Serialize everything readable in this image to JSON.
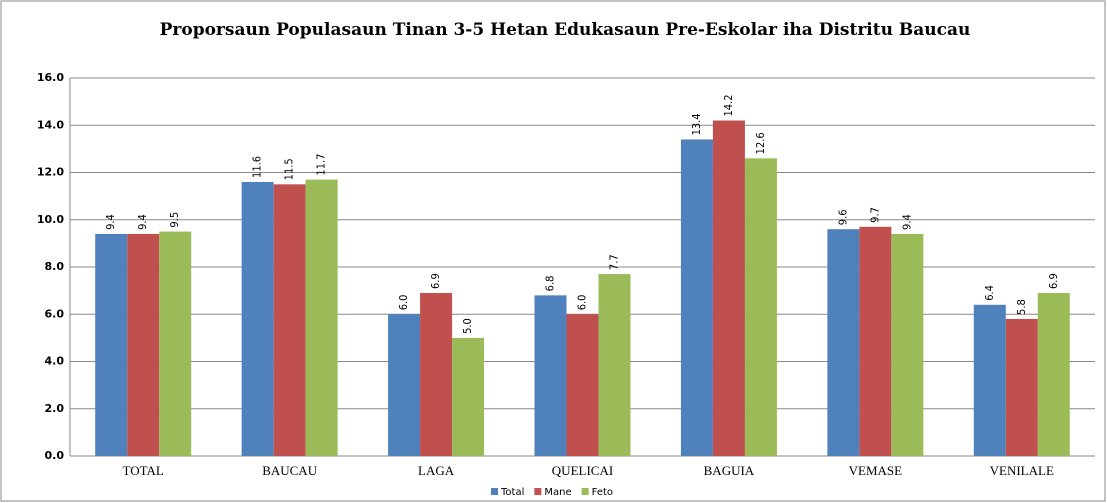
{
  "chart_data": {
    "type": "bar",
    "title": "Proporsaun Populasaun Tinan 3-5 Hetan Edukasaun Pre-Eskolar iha Distritu Baucau",
    "categories": [
      "TOTAL",
      "BAUCAU",
      "LAGA",
      "QUELICAI",
      "BAGUIA",
      "VEMASE",
      "VENILALE"
    ],
    "series": [
      {
        "name": "Total",
        "color": "#4f81bd",
        "values": [
          9.4,
          11.6,
          6.0,
          6.8,
          13.4,
          9.6,
          6.4
        ],
        "value_labels": [
          "9.4",
          "11.6",
          "6.0",
          "6.8",
          "13.4",
          "9.6",
          "6.4"
        ]
      },
      {
        "name": "Mane",
        "color": "#c0504d",
        "values": [
          9.4,
          11.5,
          6.9,
          6.0,
          14.2,
          9.7,
          5.8
        ],
        "value_labels": [
          "9.4",
          "11.5",
          "6.9",
          "6.0",
          "14.2",
          "9.7",
          "5.8"
        ]
      },
      {
        "name": "Feto",
        "color": "#9bbb59",
        "values": [
          9.5,
          11.7,
          5.0,
          7.7,
          12.6,
          9.4,
          6.9
        ],
        "value_labels": [
          "9.5",
          "11.7",
          "5.0",
          "7.7",
          "12.6",
          "9.4",
          "6.9"
        ]
      }
    ],
    "ylim": [
      0,
      16
    ],
    "yticks": [
      {
        "value": 0,
        "label": "0.0"
      },
      {
        "value": 2,
        "label": "2.0"
      },
      {
        "value": 4,
        "label": "4.0"
      },
      {
        "value": 6,
        "label": "6.0"
      },
      {
        "value": 8,
        "label": "8.0"
      },
      {
        "value": 10,
        "label": "10.0"
      },
      {
        "value": 12,
        "label": "12.0"
      },
      {
        "value": 14,
        "label": "14.0"
      },
      {
        "value": 16,
        "label": "16.0"
      }
    ],
    "grid": true,
    "legend": "bottom"
  }
}
